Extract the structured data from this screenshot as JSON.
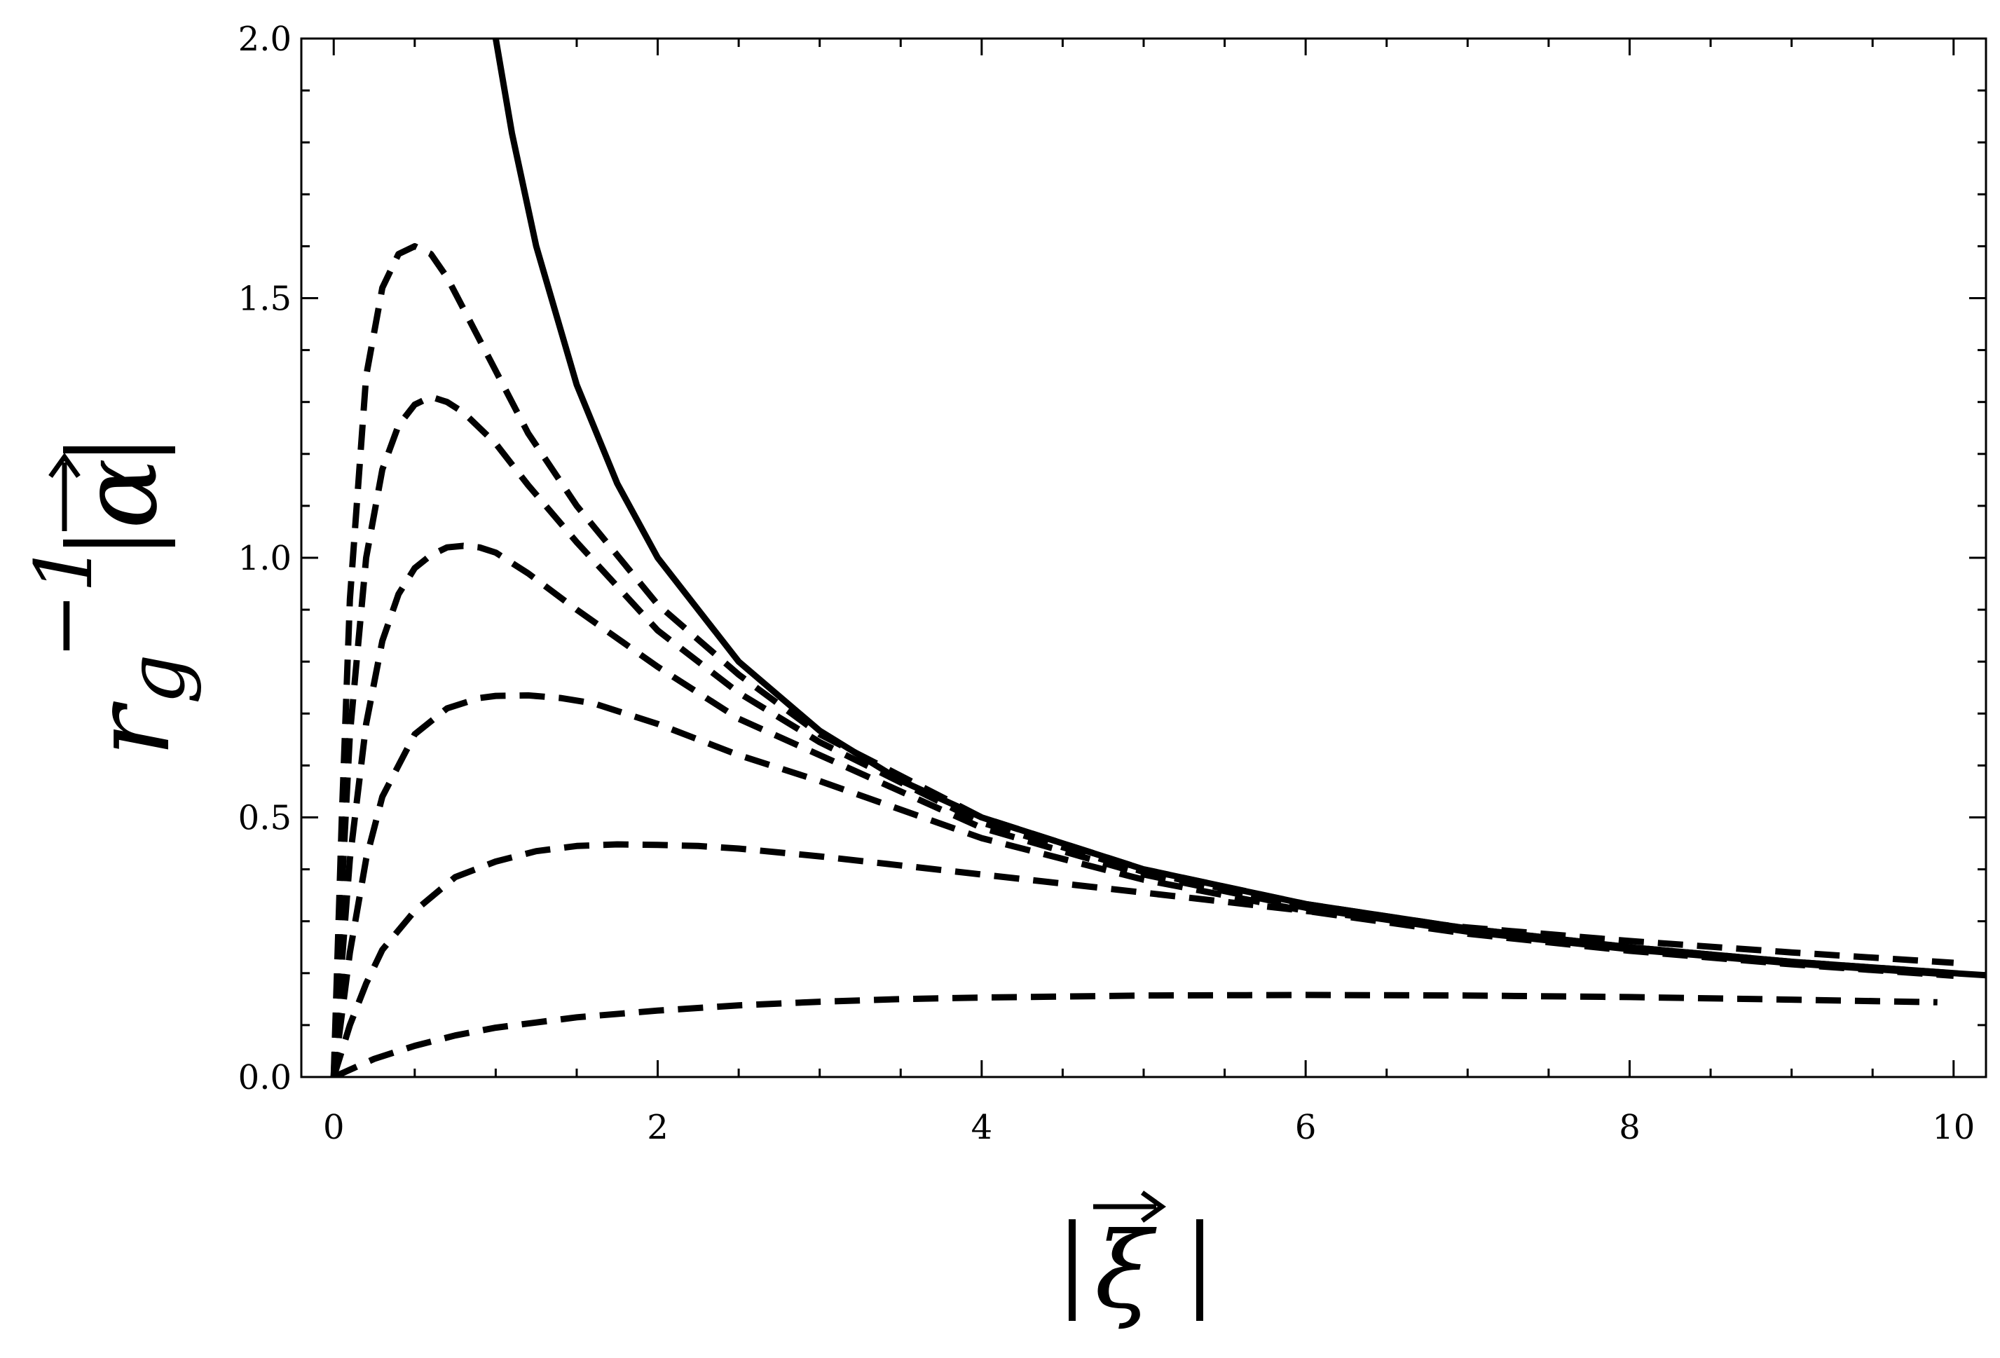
{
  "chart_data": {
    "type": "line",
    "title": "",
    "xlabel": "|ξ|",
    "ylabel": "r_g^-1 |α|",
    "ylabel_parts": {
      "r": "r",
      "sub": "g",
      "sup": "−1",
      "alpha": "α"
    },
    "xlabel_parts": {
      "xi": "ξ"
    },
    "xlim": [
      -0.2,
      10.2
    ],
    "ylim": [
      0,
      2.0
    ],
    "x_ticks": [
      0,
      2,
      4,
      6,
      8,
      10
    ],
    "x_tick_labels": [
      "0",
      "2",
      "4",
      "6",
      "8",
      "10"
    ],
    "y_ticks": [
      0.0,
      0.5,
      1.0,
      1.5,
      2.0
    ],
    "y_tick_labels": [
      "0.0",
      "0.5",
      "1.0",
      "1.5",
      "2.0"
    ],
    "grid": false,
    "legend": "none",
    "series": [
      {
        "style": "solid",
        "x": [
          1.0,
          1.1,
          1.25,
          1.5,
          1.75,
          2.0,
          2.5,
          3.0,
          3.5,
          4.0,
          5.0,
          6.0,
          7.0,
          8.0,
          9.0,
          10.0,
          10.2
        ],
        "values": [
          2.0,
          1.818,
          1.6,
          1.333,
          1.143,
          1.0,
          0.8,
          0.667,
          0.571,
          0.5,
          0.4,
          0.333,
          0.286,
          0.25,
          0.222,
          0.2,
          0.196
        ]
      },
      {
        "style": "dashed",
        "x": [
          0.0,
          0.05,
          0.1,
          0.2,
          0.3,
          0.4,
          0.5,
          0.6,
          0.7,
          0.8,
          1.0,
          1.2,
          1.5,
          2.0,
          2.5,
          3.0,
          4.0,
          5.0,
          6.0,
          7.0,
          8.0,
          9.0,
          10.0
        ],
        "values": [
          0.0,
          0.5,
          0.92,
          1.35,
          1.52,
          1.585,
          1.6,
          1.585,
          1.54,
          1.48,
          1.36,
          1.24,
          1.1,
          0.91,
          0.775,
          0.66,
          0.5,
          0.4,
          0.333,
          0.286,
          0.25,
          0.222,
          0.2
        ]
      },
      {
        "style": "dashed",
        "x": [
          0.0,
          0.05,
          0.1,
          0.2,
          0.3,
          0.4,
          0.5,
          0.6,
          0.7,
          0.8,
          1.0,
          1.2,
          1.5,
          2.0,
          2.5,
          3.0,
          4.0,
          5.0,
          6.0,
          7.0,
          8.0,
          9.0,
          10.0
        ],
        "values": [
          0.0,
          0.36,
          0.66,
          1.0,
          1.17,
          1.255,
          1.295,
          1.31,
          1.3,
          1.28,
          1.22,
          1.14,
          1.03,
          0.86,
          0.74,
          0.645,
          0.49,
          0.395,
          0.33,
          0.284,
          0.248,
          0.221,
          0.199
        ]
      },
      {
        "style": "dashed",
        "x": [
          0.0,
          0.05,
          0.1,
          0.2,
          0.3,
          0.4,
          0.5,
          0.6,
          0.7,
          0.8,
          0.9,
          1.0,
          1.2,
          1.5,
          2.0,
          2.5,
          3.0,
          4.0,
          5.0,
          6.0,
          7.0,
          8.0,
          9.0,
          10.0
        ],
        "values": [
          0.0,
          0.22,
          0.42,
          0.68,
          0.84,
          0.93,
          0.98,
          1.005,
          1.02,
          1.023,
          1.02,
          1.01,
          0.97,
          0.9,
          0.79,
          0.69,
          0.62,
          0.48,
          0.39,
          0.326,
          0.28,
          0.246,
          0.219,
          0.197
        ]
      },
      {
        "style": "dashed",
        "x": [
          0.0,
          0.05,
          0.1,
          0.2,
          0.3,
          0.5,
          0.7,
          0.9,
          1.0,
          1.2,
          1.4,
          1.6,
          2.0,
          2.5,
          3.0,
          4.0,
          5.0,
          6.0,
          7.0,
          8.0,
          9.0,
          10.0
        ],
        "values": [
          0.0,
          0.12,
          0.24,
          0.42,
          0.54,
          0.66,
          0.71,
          0.73,
          0.734,
          0.735,
          0.73,
          0.72,
          0.68,
          0.62,
          0.57,
          0.46,
          0.38,
          0.32,
          0.276,
          0.243,
          0.217,
          0.195
        ]
      },
      {
        "style": "dashed",
        "x": [
          0.0,
          0.1,
          0.2,
          0.3,
          0.5,
          0.75,
          1.0,
          1.25,
          1.5,
          1.75,
          2.0,
          2.25,
          2.5,
          3.0,
          4.0,
          5.0,
          6.0,
          7.0,
          8.0,
          9.0,
          10.0
        ],
        "values": [
          0.0,
          0.1,
          0.18,
          0.245,
          0.32,
          0.385,
          0.415,
          0.435,
          0.445,
          0.448,
          0.447,
          0.445,
          0.44,
          0.425,
          0.39,
          0.355,
          0.32,
          0.288,
          0.262,
          0.24,
          0.22
        ]
      },
      {
        "style": "dashed",
        "x": [
          0.0,
          0.25,
          0.5,
          0.75,
          1.0,
          1.5,
          2.0,
          2.5,
          3.0,
          3.5,
          4.0,
          5.0,
          6.0,
          7.0,
          8.0,
          9.0,
          9.9
        ],
        "values": [
          0.0,
          0.035,
          0.06,
          0.08,
          0.095,
          0.115,
          0.128,
          0.138,
          0.145,
          0.15,
          0.153,
          0.157,
          0.158,
          0.157,
          0.154,
          0.149,
          0.144
        ]
      }
    ]
  }
}
